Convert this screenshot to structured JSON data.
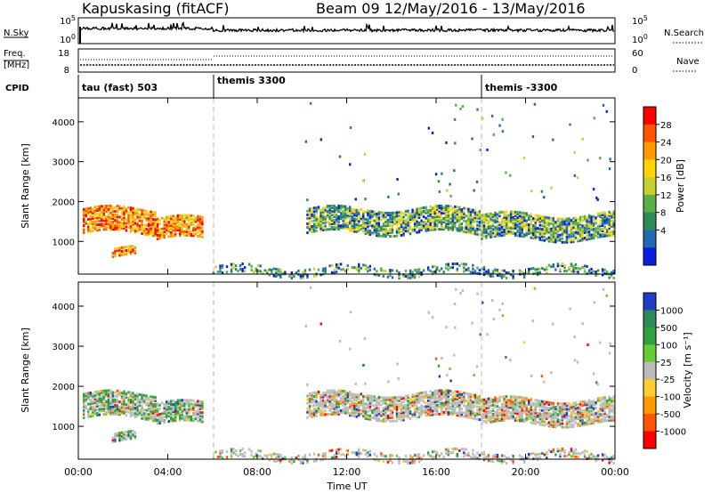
{
  "header": {
    "title": "Kapuskasing (fitACF)",
    "subtitle": "Beam 09  12/May/2016 - 13/May/2016"
  },
  "top_panels": {
    "nsky": {
      "label": "N.Sky",
      "ticks": [
        "10^5",
        "10^0"
      ]
    },
    "nsearch": {
      "label": "N.Search",
      "ticks": [
        "10^5",
        "10^0"
      ]
    },
    "freq": {
      "label": "Freq.",
      "unit": "[MHz]",
      "ticks": [
        "18",
        "8"
      ]
    },
    "nave": {
      "label": "Nave",
      "ticks": [
        "60",
        "0"
      ]
    },
    "cpid": {
      "label": "CPID",
      "segments": [
        {
          "text": "tau (fast) 503",
          "start_h": 0
        },
        {
          "text": "themis 3300",
          "start_h": 6
        },
        {
          "text": "themis -3300",
          "start_h": 18
        }
      ]
    }
  },
  "chart_data": [
    {
      "type": "heatmap",
      "title": "",
      "xlabel": "Time UT",
      "ylabel": "Slant Range [km]",
      "xlim_h": [
        0,
        24
      ],
      "ylim": [
        180,
        4600
      ],
      "xticks": [
        "00:00",
        "04:00",
        "08:00",
        "12:00",
        "16:00",
        "20:00",
        "00:00"
      ],
      "yticks": [
        "1000",
        "2000",
        "3000",
        "4000"
      ],
      "colorbar": {
        "label": "Power [dB]",
        "ticks": [
          "28",
          "24",
          "20",
          "16",
          "12",
          "8",
          "4"
        ],
        "colors": [
          "#ff0000",
          "#ff5500",
          "#ff9a00",
          "#ffd400",
          "#c8d030",
          "#58b048",
          "#2f8a58",
          "#1e6ab0",
          "#0a1ee0"
        ]
      },
      "echo_regions": [
        {
          "t0": 0.2,
          "t1": 3.5,
          "r_lo": 1250,
          "r_hi": 1850,
          "level": "high"
        },
        {
          "t0": 1.5,
          "t1": 2.6,
          "r_lo": 650,
          "r_hi": 850,
          "level": "high"
        },
        {
          "t0": 3.5,
          "t1": 5.5,
          "r_lo": 1100,
          "r_hi": 1600,
          "level": "high"
        },
        {
          "t0": 10.2,
          "t1": 18.0,
          "r_lo": 1250,
          "r_hi": 1850,
          "level": "mid"
        },
        {
          "t0": 18.0,
          "t1": 24.0,
          "r_lo": 1100,
          "r_hi": 1700,
          "level": "mid"
        },
        {
          "t0": 6.0,
          "t1": 24.0,
          "r_lo": 200,
          "r_hi": 420,
          "level": "low"
        }
      ]
    },
    {
      "type": "heatmap",
      "title": "",
      "xlabel": "Time UT",
      "ylabel": "Slant Range [km]",
      "xlim_h": [
        0,
        24
      ],
      "ylim": [
        180,
        4600
      ],
      "xticks": [
        "00:00",
        "04:00",
        "08:00",
        "12:00",
        "16:00",
        "20:00",
        "00:00"
      ],
      "yticks": [
        "1000",
        "2000",
        "3000",
        "4000"
      ],
      "colorbar": {
        "label": "Velocity [m s⁻¹]",
        "ticks": [
          "1000",
          "500",
          "100",
          "25",
          "-25",
          "-100",
          "-500",
          "-1000"
        ],
        "colors": [
          "#1e3cc8",
          "#2f8a58",
          "#30a040",
          "#66cc33",
          "#bbbbbb",
          "#ffcc33",
          "#ff9900",
          "#ff5500",
          "#ff0000"
        ]
      }
    }
  ],
  "colors": {
    "ground_scatter": "#bbbbbb",
    "axis": "#000000"
  }
}
